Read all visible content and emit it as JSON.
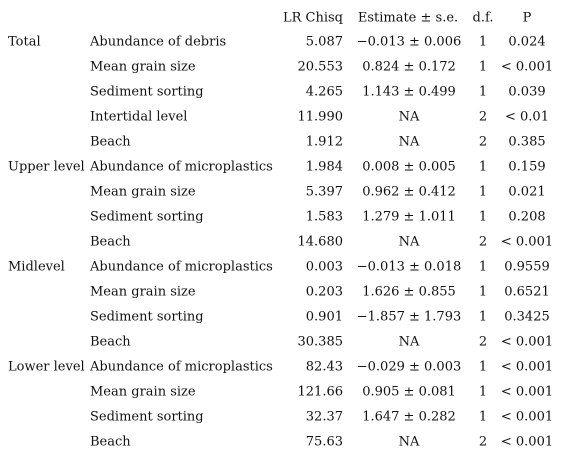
{
  "header": {
    "lr": "LR Chisq",
    "estimate": "Estimate ± s.e.",
    "df": "d.f.",
    "p": "P"
  },
  "groups": [
    {
      "name": "Total",
      "rows": [
        {
          "variable": "Abundance of debris",
          "lr": "5.087",
          "estimate": "−0.013 ± 0.006",
          "df": "1",
          "p": "0.024"
        },
        {
          "variable": "Mean grain size",
          "lr": "20.553",
          "estimate": "0.824 ± 0.172",
          "df": "1",
          "p": "< 0.001"
        },
        {
          "variable": "Sediment sorting",
          "lr": "4.265",
          "estimate": "1.143 ± 0.499",
          "df": "1",
          "p": "0.039"
        },
        {
          "variable": "Intertidal level",
          "lr": "11.990",
          "estimate": "NA",
          "df": "2",
          "p": "< 0.01"
        },
        {
          "variable": "Beach",
          "lr": "1.912",
          "estimate": "NA",
          "df": "2",
          "p": "0.385"
        }
      ]
    },
    {
      "name": "Upper level",
      "rows": [
        {
          "variable": "Abundance of microplastics",
          "lr": "1.984",
          "estimate": "0.008 ± 0.005",
          "df": "1",
          "p": "0.159"
        },
        {
          "variable": "Mean grain size",
          "lr": "5.397",
          "estimate": "0.962 ± 0.412",
          "df": "1",
          "p": "0.021"
        },
        {
          "variable": "Sediment sorting",
          "lr": "1.583",
          "estimate": "1.279 ± 1.011",
          "df": "1",
          "p": "0.208"
        },
        {
          "variable": "Beach",
          "lr": "14.680",
          "estimate": "NA",
          "df": "2",
          "p": "< 0.001"
        }
      ]
    },
    {
      "name": "Midlevel",
      "rows": [
        {
          "variable": "Abundance of microplastics",
          "lr": "0.003",
          "estimate": "−0.013 ± 0.018",
          "df": "1",
          "p": "0.9559"
        },
        {
          "variable": "Mean grain size",
          "lr": "0.203",
          "estimate": "1.626 ± 0.855",
          "df": "1",
          "p": "0.6521"
        },
        {
          "variable": "Sediment sorting",
          "lr": "0.901",
          "estimate": "−1.857 ± 1.793",
          "df": "1",
          "p": "0.3425"
        },
        {
          "variable": "Beach",
          "lr": "30.385",
          "estimate": "NA",
          "df": "2",
          "p": "< 0.001"
        }
      ]
    },
    {
      "name": "Lower level",
      "rows": [
        {
          "variable": "Abundance of microplastics",
          "lr": "82.43",
          "estimate": "−0.029 ± 0.003",
          "df": "1",
          "p": "< 0.001"
        },
        {
          "variable": "Mean grain size",
          "lr": "121.66",
          "estimate": "0.905 ± 0.081",
          "df": "1",
          "p": "< 0.001"
        },
        {
          "variable": "Sediment sorting",
          "lr": "32.37",
          "estimate": "1.647 ± 0.282",
          "df": "1",
          "p": "< 0.001"
        },
        {
          "variable": "Beach",
          "lr": "75.63",
          "estimate": "NA",
          "df": "2",
          "p": "< 0.001"
        }
      ]
    }
  ]
}
